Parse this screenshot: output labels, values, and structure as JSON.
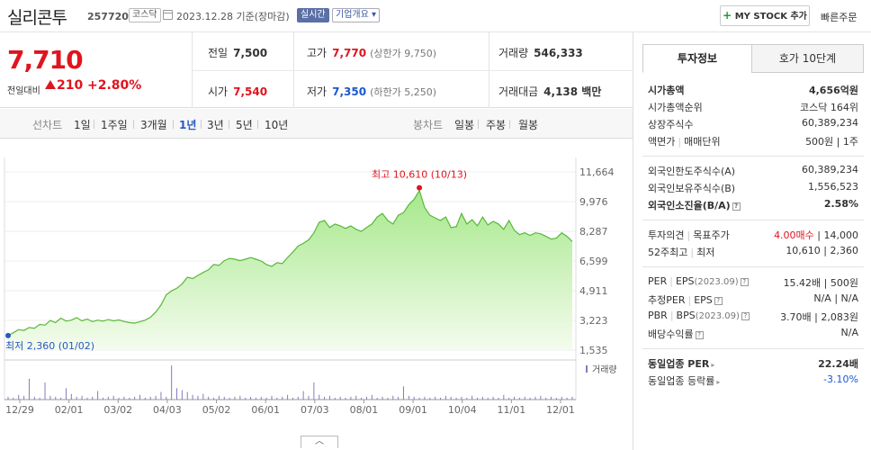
{
  "header": {
    "company": "실리콘투",
    "code": "257720",
    "market": "코스닥",
    "date_text": "2023.12.28 기준(장마감)",
    "realtime": "실시간",
    "company_info": "기업개요",
    "mystock": "MY STOCK 추가",
    "quick_order": "빠른주문"
  },
  "price": {
    "current": "7,710",
    "change_label": "전일대비",
    "change": "210",
    "change_pct": "+2.80%",
    "prev_close_label": "전일",
    "prev_close": "7,500",
    "open_label": "시가",
    "open": "7,540",
    "high_label": "고가",
    "high": "7,770",
    "upper_limit": "(상한가 9,750)",
    "low_label": "저가",
    "low": "7,350",
    "lower_limit": "(하한가 5,250)",
    "volume_label": "거래량",
    "volume": "546,333",
    "amount_label": "거래대금",
    "amount": "4,138 백만"
  },
  "tabs": {
    "line_label": "선차트",
    "ranges": [
      "1일",
      "1주일",
      "3개월",
      "1년",
      "3년",
      "5년",
      "10년"
    ],
    "selected": "1년",
    "candle_label": "봉차트",
    "candles": [
      "일봉",
      "주봉",
      "월봉"
    ]
  },
  "chart_data": {
    "type": "area",
    "y_ticks": [
      "11,664",
      "9,976",
      "8,287",
      "6,599",
      "4,911",
      "3,223",
      "1,535"
    ],
    "ylim": [
      1535,
      11664
    ],
    "x_ticks": [
      "12/29",
      "02/01",
      "03/02",
      "04/03",
      "05/02",
      "06/01",
      "07/03",
      "08/01",
      "09/01",
      "10/04",
      "11/01",
      "12/01"
    ],
    "high_annotation": "최고 10,610 (10/13)",
    "low_annotation": "최저 2,360 (01/02)",
    "volume_legend": "거래량",
    "prices": [
      2360,
      2520,
      2700,
      2650,
      2820,
      2780,
      3000,
      2950,
      3220,
      3100,
      3350,
      3180,
      3240,
      3380,
      3200,
      3300,
      3150,
      3240,
      3180,
      3270,
      3200,
      3250,
      3160,
      3100,
      3070,
      3150,
      3240,
      3400,
      3700,
      4100,
      4680,
      4900,
      5050,
      5300,
      5680,
      5600,
      5780,
      5950,
      6100,
      6400,
      6350,
      6620,
      6750,
      6700,
      6620,
      6700,
      6800,
      6700,
      6600,
      6400,
      6300,
      6500,
      6450,
      6800,
      7100,
      7450,
      7600,
      7800,
      8200,
      8800,
      8900,
      8500,
      8700,
      8600,
      8450,
      8600,
      8400,
      8280,
      8500,
      8700,
      9100,
      9300,
      8900,
      8700,
      9200,
      9350,
      9800,
      10100,
      10610,
      9650,
      9200,
      9050,
      8900,
      9100,
      8500,
      8550,
      9300,
      8700,
      8950,
      8600,
      9100,
      8650,
      8850,
      8700,
      8400,
      8900,
      8350,
      8100,
      8200,
      8050,
      8200,
      8150,
      8000,
      7850,
      7900,
      8200,
      8000,
      7710
    ],
    "volumes": [
      3,
      2,
      5,
      4,
      22,
      3,
      2,
      18,
      4,
      3,
      2,
      12,
      6,
      3,
      4,
      2,
      3,
      9,
      2,
      3,
      4,
      2,
      3,
      2,
      3,
      5,
      2,
      3,
      4,
      8,
      3,
      36,
      12,
      10,
      8,
      5,
      4,
      6,
      3,
      2,
      4,
      3,
      2,
      3,
      4,
      2,
      3,
      2,
      3,
      2,
      4,
      2,
      3,
      5,
      2,
      3,
      9,
      4,
      18,
      5,
      3,
      4,
      2,
      3,
      2,
      3,
      4,
      2,
      3,
      5,
      2,
      3,
      2,
      4,
      3,
      14,
      4,
      3,
      2,
      3,
      2,
      3,
      2,
      4,
      3,
      2,
      3,
      2,
      4,
      2,
      3,
      2,
      3,
      2,
      5,
      2,
      3,
      2,
      3,
      2,
      3,
      4,
      2,
      3,
      2,
      3,
      2,
      3
    ]
  },
  "invest": {
    "tab_on": "투자정보",
    "tab_off": "호가 10단계",
    "market_cap_label": "시가총액",
    "market_cap": "4,656억원",
    "rank_label": "시가총액순위",
    "rank": "코스닥 164위",
    "shares_label": "상장주식수",
    "shares": "60,389,234",
    "par_label": "액면가",
    "unit_label": "매매단위",
    "par_unit": "500원 | 1주",
    "foreign_limit_label": "외국인한도주식수(A)",
    "foreign_limit": "60,389,234",
    "foreign_hold_label": "외국인보유주식수(B)",
    "foreign_hold": "1,556,523",
    "foreign_ratio_label": "외국인소진율(B/A)",
    "foreign_ratio": "2.58%",
    "opinion_label": "투자의견",
    "target_label": "목표주가",
    "opinion": "4.00매수",
    "target": "14,000",
    "w52_label": "52주최고",
    "w52_low_label": "최저",
    "w52": "10,610 | 2,360",
    "per_label": "PER",
    "eps_label": "EPS",
    "per_year": "(2023.09)",
    "per_eps": "15.42배 | 500원",
    "est_per_label": "추정PER",
    "est_eps_label": "EPS",
    "est_per_eps": "N/A | N/A",
    "pbr_label": "PBR",
    "bps_label": "BPS",
    "pbr_year": "(2023.09)",
    "pbr_bps": "3.70배 | 2,083원",
    "div_label": "배당수익률",
    "div": "N/A",
    "sector_per_label": "동일업종 PER",
    "sector_per": "22.24배",
    "sector_rate_label": "동일업종 등락률",
    "sector_rate": "-3.10%"
  }
}
